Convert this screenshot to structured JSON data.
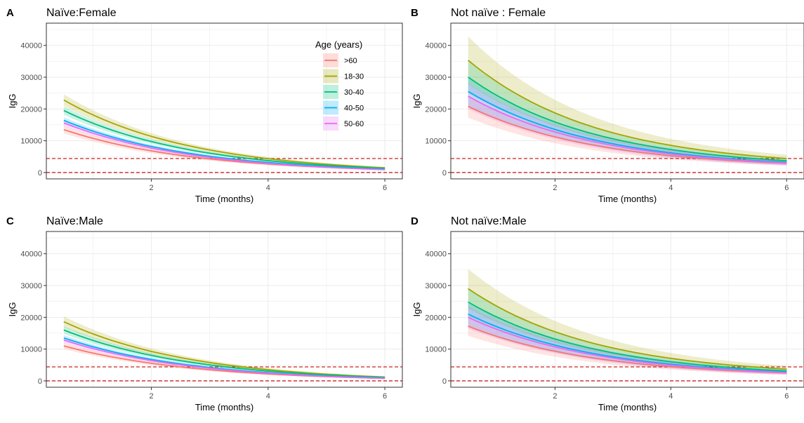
{
  "figure": {
    "legend": {
      "title": "Age (years)",
      "entries": [
        ">60",
        "18-30",
        "30-40",
        "40-50",
        "50-60"
      ]
    },
    "colors": {
      ">60": "#F8766D",
      "18-30": "#A3A500",
      "30-40": "#00BF7D",
      "40-50": "#00B0F6",
      "50-60": "#E76BF3",
      "threshold": "#CC2222",
      "grid": "#EBEBEB",
      "panel_border": "#333333"
    }
  },
  "chart_data": [
    {
      "panel": "A",
      "type": "line",
      "title": "Naïve:Female",
      "xlabel": "Time (months)",
      "ylabel": "IgG",
      "xlim": [
        0.2,
        6.3
      ],
      "ylim": [
        -2000,
        47000
      ],
      "xticks": [
        2,
        4,
        6
      ],
      "yticks": [
        0,
        10000,
        20000,
        30000,
        40000
      ],
      "grid": true,
      "legend": "top-right",
      "hlines": [
        0,
        4400
      ],
      "x_range": [
        0.5,
        6
      ],
      "series": [
        {
          "name": ">60",
          "start": 13500,
          "end": 1000,
          "band_start": 1200,
          "band_end": 300
        },
        {
          "name": "18-30",
          "start": 22800,
          "end": 1500,
          "band_start": 1800,
          "band_end": 300
        },
        {
          "name": "30-40",
          "start": 19500,
          "end": 1300,
          "band_start": 1300,
          "band_end": 200
        },
        {
          "name": "40-50",
          "start": 16400,
          "end": 1100,
          "band_start": 1000,
          "band_end": 200
        },
        {
          "name": "50-60",
          "start": 15600,
          "end": 900,
          "band_start": 1000,
          "band_end": 200
        }
      ]
    },
    {
      "panel": "B",
      "type": "line",
      "title": "Not naïve : Female",
      "xlabel": "Time (months)",
      "ylabel": "IgG",
      "xlim": [
        0.2,
        6.3
      ],
      "ylim": [
        -2000,
        47000
      ],
      "xticks": [
        2,
        4,
        6
      ],
      "yticks": [
        0,
        10000,
        20000,
        30000,
        40000
      ],
      "grid": true,
      "hlines": [
        0,
        4400
      ],
      "x_range": [
        0.5,
        6
      ],
      "series": [
        {
          "name": ">60",
          "start": 20800,
          "end": 2900,
          "band_start": 3500,
          "band_end": 700
        },
        {
          "name": "18-30",
          "start": 35300,
          "end": 4400,
          "band_start": 7500,
          "band_end": 1200
        },
        {
          "name": "30-40",
          "start": 30000,
          "end": 3700,
          "band_start": 5000,
          "band_end": 900
        },
        {
          "name": "40-50",
          "start": 25500,
          "end": 3200,
          "band_start": 4500,
          "band_end": 800
        },
        {
          "name": "50-60",
          "start": 24000,
          "end": 3000,
          "band_start": 4000,
          "band_end": 800
        }
      ]
    },
    {
      "panel": "C",
      "type": "line",
      "title": "Naïve:Male",
      "xlabel": "Time (months)",
      "ylabel": "IgG",
      "xlim": [
        0.2,
        6.3
      ],
      "ylim": [
        -2000,
        47000
      ],
      "xticks": [
        2,
        4,
        6
      ],
      "yticks": [
        0,
        10000,
        20000,
        30000,
        40000
      ],
      "grid": true,
      "hlines": [
        0,
        4400
      ],
      "x_range": [
        0.5,
        6
      ],
      "series": [
        {
          "name": ">60",
          "start": 11000,
          "end": 800,
          "band_start": 1000,
          "band_end": 200
        },
        {
          "name": "18-30",
          "start": 18600,
          "end": 1200,
          "band_start": 1700,
          "band_end": 300
        },
        {
          "name": "30-40",
          "start": 16000,
          "end": 1100,
          "band_start": 1200,
          "band_end": 200
        },
        {
          "name": "40-50",
          "start": 13500,
          "end": 900,
          "band_start": 900,
          "band_end": 200
        },
        {
          "name": "50-60",
          "start": 12800,
          "end": 800,
          "band_start": 900,
          "band_end": 200
        }
      ]
    },
    {
      "panel": "D",
      "type": "line",
      "title": "Not naïve:Male",
      "xlabel": "Time (months)",
      "ylabel": "IgG",
      "xlim": [
        0.2,
        6.3
      ],
      "ylim": [
        -2000,
        47000
      ],
      "xticks": [
        2,
        4,
        6
      ],
      "yticks": [
        0,
        10000,
        20000,
        30000,
        40000
      ],
      "grid": true,
      "hlines": [
        0,
        4400
      ],
      "x_range": [
        0.5,
        6
      ],
      "series": [
        {
          "name": ">60",
          "start": 17200,
          "end": 2500,
          "band_start": 3000,
          "band_end": 600
        },
        {
          "name": "18-30",
          "start": 29000,
          "end": 3700,
          "band_start": 6200,
          "band_end": 1000
        },
        {
          "name": "30-40",
          "start": 24800,
          "end": 3100,
          "band_start": 4500,
          "band_end": 800
        },
        {
          "name": "40-50",
          "start": 21000,
          "end": 2800,
          "band_start": 4000,
          "band_end": 700
        },
        {
          "name": "50-60",
          "start": 20000,
          "end": 2600,
          "band_start": 3500,
          "band_end": 700
        }
      ]
    }
  ]
}
